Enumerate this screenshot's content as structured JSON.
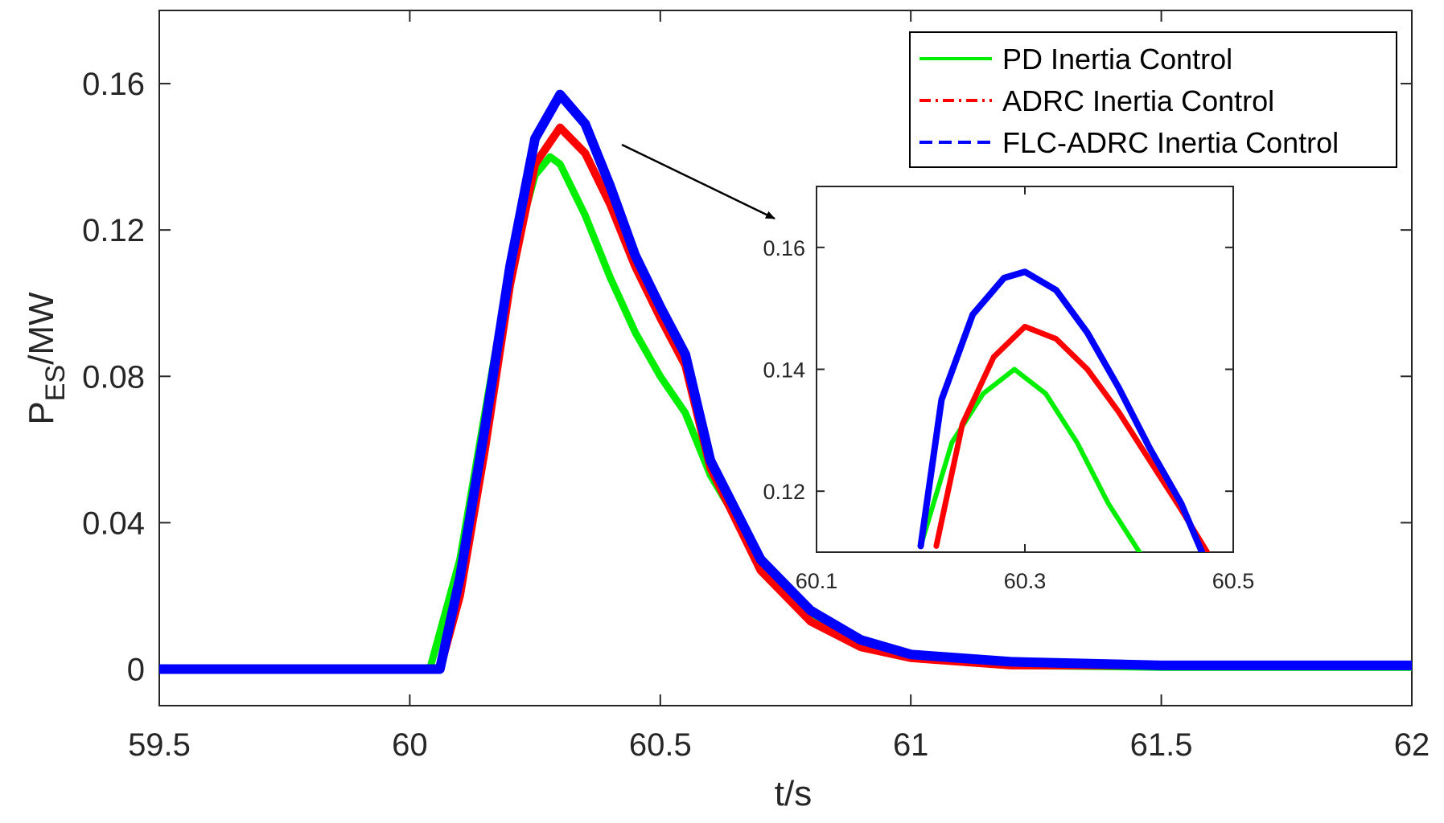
{
  "chart_data": [
    {
      "id": "main",
      "type": "line",
      "title": "",
      "xlabel": "t/s",
      "ylabel": {
        "base": "P",
        "subscript": "ES",
        "suffix": "/MW"
      },
      "xlim": [
        59.5,
        62
      ],
      "ylim": [
        -0.01,
        0.18
      ],
      "xticks": [
        59.5,
        60,
        60.5,
        61,
        61.5,
        62
      ],
      "xtick_labels": [
        "59.5",
        "60",
        "60.5",
        "61",
        "61.5",
        "62"
      ],
      "yticks": [
        0,
        0.04,
        0.08,
        0.12,
        0.16
      ],
      "ytick_labels": [
        "0",
        "0.04",
        "0.08",
        "0.12",
        "0.16"
      ],
      "legend_position": "top-right",
      "series": [
        {
          "name": "PD Inertia Control",
          "color": "#00ee00",
          "style": "solid",
          "x": [
            59.5,
            60.04,
            60.1,
            60.15,
            60.2,
            60.25,
            60.28,
            60.3,
            60.35,
            60.4,
            60.45,
            60.5,
            60.55,
            60.6,
            60.7,
            60.8,
            60.9,
            61.0,
            61.2,
            61.5,
            62.0
          ],
          "y": [
            0,
            0,
            0.03,
            0.07,
            0.11,
            0.135,
            0.14,
            0.138,
            0.124,
            0.107,
            0.092,
            0.08,
            0.07,
            0.053,
            0.03,
            0.015,
            0.007,
            0.003,
            0.001,
            0.0005,
            0.0005
          ]
        },
        {
          "name": "ADRC Inertia Control",
          "color": "#ff0000",
          "style": "dash-dot",
          "x": [
            59.5,
            60.06,
            60.1,
            60.15,
            60.2,
            60.25,
            60.3,
            60.35,
            60.4,
            60.45,
            60.5,
            60.55,
            60.6,
            60.7,
            60.8,
            60.9,
            61.0,
            61.2,
            61.5,
            62.0
          ],
          "y": [
            0,
            0,
            0.02,
            0.06,
            0.105,
            0.138,
            0.148,
            0.141,
            0.127,
            0.11,
            0.096,
            0.083,
            0.055,
            0.027,
            0.013,
            0.006,
            0.003,
            0.001,
            0.001,
            0.001
          ]
        },
        {
          "name": "FLC-ADRC Inertia Control",
          "color": "#0000ff",
          "style": "dashed",
          "x": [
            59.5,
            60.06,
            60.1,
            60.15,
            60.2,
            60.25,
            60.3,
            60.35,
            60.4,
            60.45,
            60.5,
            60.55,
            60.6,
            60.7,
            60.8,
            60.9,
            61.0,
            61.2,
            61.5,
            62.0
          ],
          "y": [
            0,
            0,
            0.025,
            0.066,
            0.11,
            0.145,
            0.157,
            0.149,
            0.132,
            0.113,
            0.099,
            0.086,
            0.057,
            0.03,
            0.016,
            0.008,
            0.004,
            0.002,
            0.001,
            0.001
          ]
        }
      ]
    },
    {
      "id": "inset",
      "type": "line",
      "title": "",
      "xlabel": "",
      "ylabel": "",
      "xlim": [
        60.1,
        60.5
      ],
      "ylim": [
        0.11,
        0.17
      ],
      "xticks": [
        60.1,
        60.3,
        60.5
      ],
      "xtick_labels": [
        "60.1",
        "60.3",
        "60.5"
      ],
      "yticks": [
        0.12,
        0.14,
        0.16
      ],
      "ytick_labels": [
        "0.12",
        "0.14",
        "0.16"
      ],
      "series": [
        {
          "name": "PD Inertia Control",
          "color": "#00ee00",
          "x": [
            60.2,
            60.23,
            60.26,
            60.29,
            60.32,
            60.35,
            60.38,
            60.41
          ],
          "y": [
            0.111,
            0.128,
            0.136,
            0.14,
            0.136,
            0.128,
            0.118,
            0.11
          ]
        },
        {
          "name": "ADRC Inertia Control",
          "color": "#ff0000",
          "x": [
            60.215,
            60.24,
            60.27,
            60.3,
            60.33,
            60.36,
            60.39,
            60.42,
            60.45,
            60.475
          ],
          "y": [
            0.111,
            0.131,
            0.142,
            0.147,
            0.145,
            0.14,
            0.133,
            0.125,
            0.117,
            0.11
          ]
        },
        {
          "name": "FLC-ADRC Inertia Control",
          "color": "#0000ff",
          "x": [
            60.2,
            60.22,
            60.25,
            60.28,
            60.3,
            60.33,
            60.36,
            60.39,
            60.42,
            60.45,
            60.47
          ],
          "y": [
            0.111,
            0.135,
            0.149,
            0.155,
            0.156,
            0.153,
            0.146,
            0.137,
            0.127,
            0.118,
            0.11
          ]
        }
      ]
    }
  ]
}
